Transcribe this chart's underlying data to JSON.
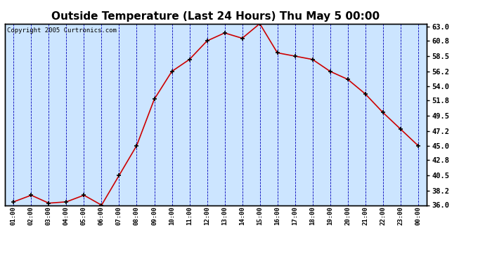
{
  "title": "Outside Temperature (Last 24 Hours) Thu May 5 00:00",
  "copyright_text": "Copyright 2005 Curtronics.com",
  "x_labels": [
    "01:00",
    "02:00",
    "03:00",
    "04:00",
    "05:00",
    "06:00",
    "07:00",
    "08:00",
    "09:00",
    "10:00",
    "11:00",
    "12:00",
    "13:00",
    "14:00",
    "15:00",
    "16:00",
    "17:00",
    "18:00",
    "19:00",
    "20:00",
    "21:00",
    "22:00",
    "23:00",
    "00:00"
  ],
  "y_values": [
    36.5,
    37.5,
    36.3,
    36.5,
    37.5,
    36.0,
    40.5,
    45.0,
    52.0,
    56.2,
    58.0,
    60.8,
    62.0,
    61.2,
    63.4,
    59.0,
    58.5,
    58.0,
    56.2,
    55.0,
    52.8,
    50.0,
    47.5,
    45.0
  ],
  "line_color": "#cc0000",
  "marker_color": "#000000",
  "bg_color": "#cce5ff",
  "outer_bg_color": "#ffffff",
  "grid_color": "#0000bb",
  "title_fontsize": 11,
  "ylim_min": 36.0,
  "ylim_max": 63.4,
  "ytick_values": [
    36.0,
    38.2,
    40.5,
    42.8,
    45.0,
    47.2,
    49.5,
    51.8,
    54.0,
    56.2,
    58.5,
    60.8,
    63.0
  ]
}
